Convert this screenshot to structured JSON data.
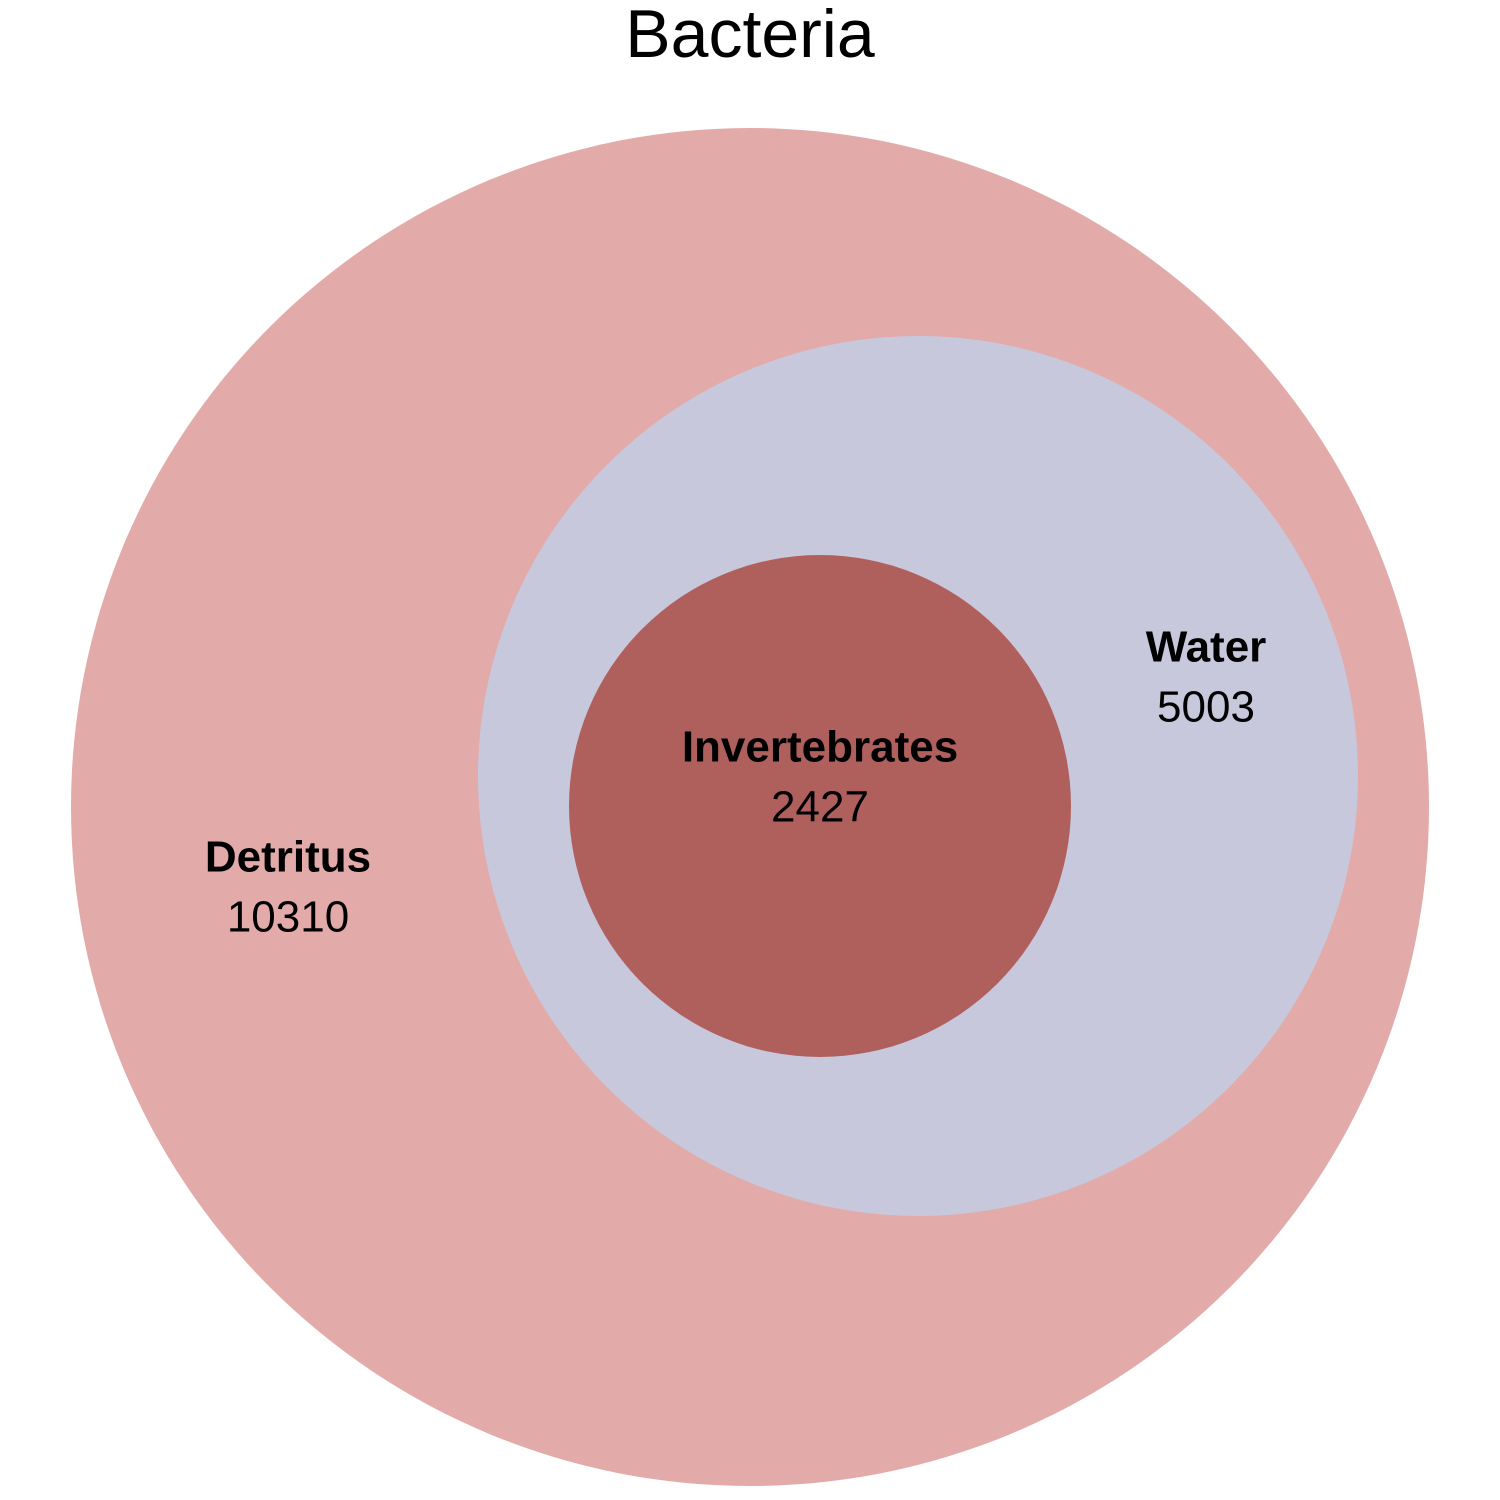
{
  "chart_data": {
    "type": "euler",
    "title": "Bacteria",
    "sets": [
      {
        "name": "Detritus",
        "value": 10310,
        "color": "#e2aaa9"
      },
      {
        "name": "Water",
        "value": 5003,
        "color": "#c8c8dc"
      },
      {
        "name": "Invertebrates",
        "value": 2427,
        "color": "#b0605c"
      }
    ],
    "nesting": "Invertebrates inside Water inside Detritus"
  }
}
